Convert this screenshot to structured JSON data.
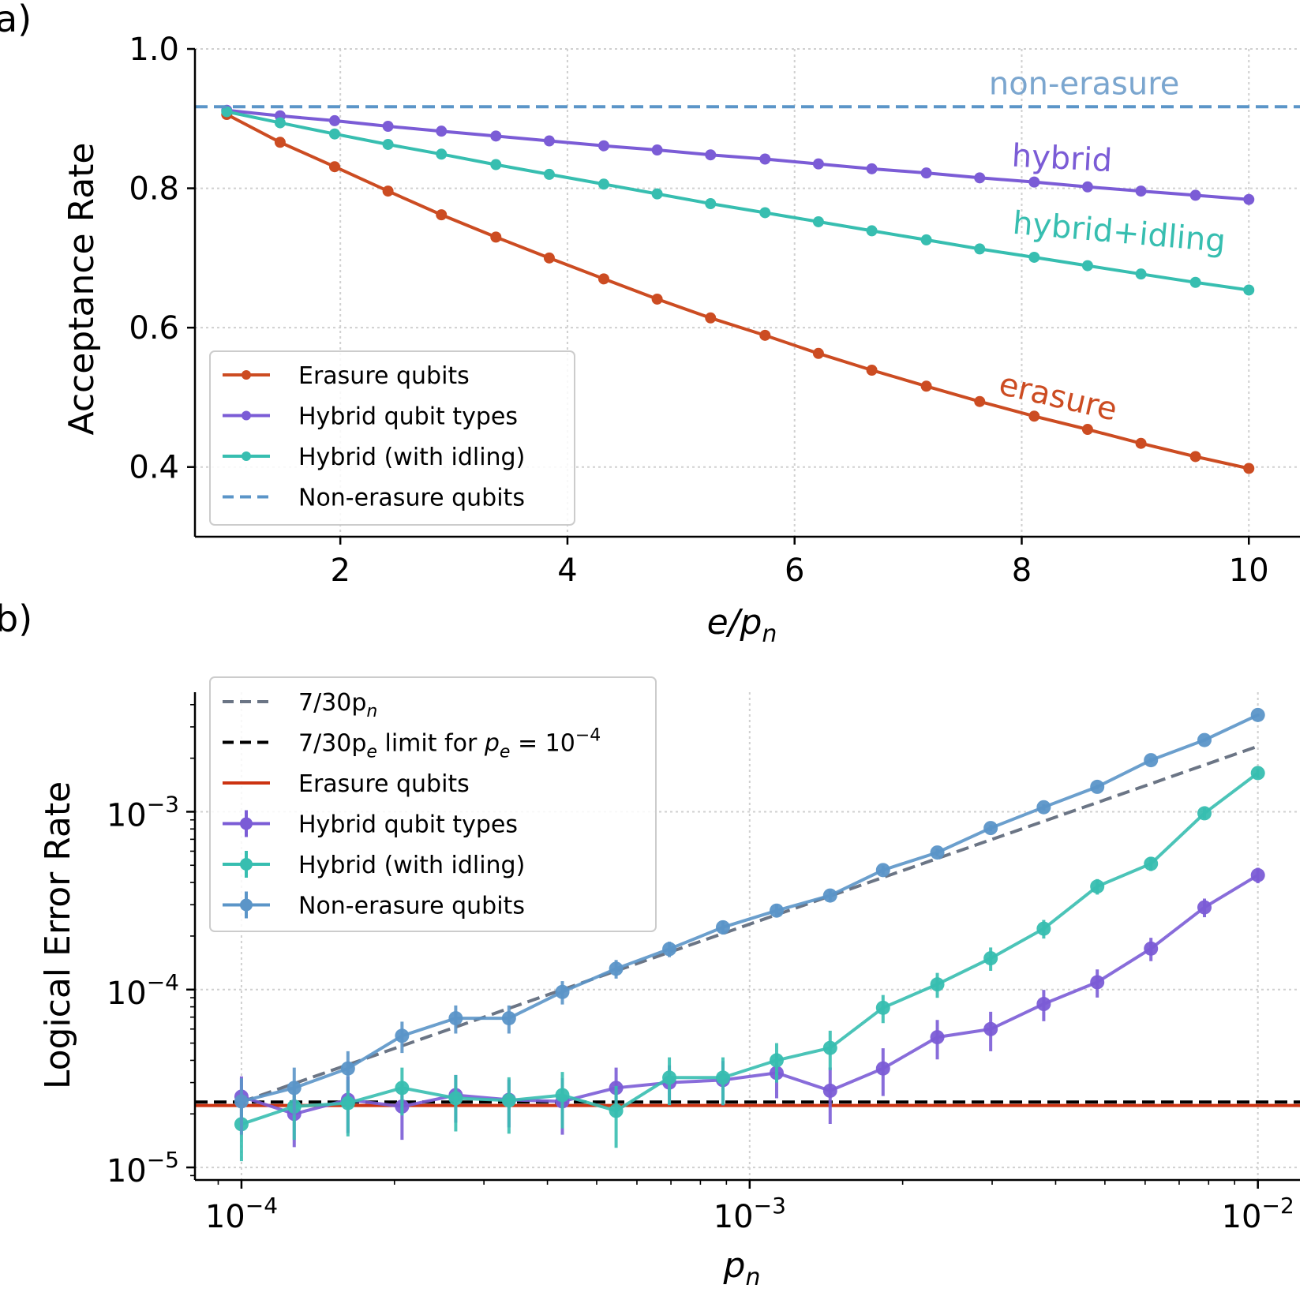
{
  "chart_data": [
    {
      "panel_label": "a)",
      "type": "line",
      "xlabel_main": "e/p",
      "xlabel_sub": "n",
      "ylabel": "Acceptance Rate",
      "xlim": [
        0.72,
        10.45
      ],
      "ylim": [
        0.3,
        1.0
      ],
      "xticks": [
        2,
        4,
        6,
        8,
        10
      ],
      "xtick_labels": [
        "2",
        "4",
        "6",
        "8",
        "10"
      ],
      "yticks": [
        0.4,
        0.6,
        0.8,
        1.0
      ],
      "ytick_labels": [
        "0.4",
        "0.6",
        "0.8",
        "1.0"
      ],
      "grid": true,
      "legend_position": "lower-left",
      "x": [
        1.0,
        1.47,
        1.95,
        2.42,
        2.89,
        3.37,
        3.84,
        4.32,
        4.79,
        5.26,
        5.74,
        6.21,
        6.68,
        7.16,
        7.63,
        8.11,
        8.58,
        9.05,
        9.53,
        10.0
      ],
      "series": [
        {
          "name": "Erasure qubits",
          "color": "#CC4C22",
          "style": "solid-marker",
          "values": [
            0.906,
            0.866,
            0.831,
            0.796,
            0.762,
            0.73,
            0.7,
            0.67,
            0.641,
            0.614,
            0.589,
            0.563,
            0.539,
            0.516,
            0.494,
            0.473,
            0.454,
            0.434,
            0.415,
            0.398
          ]
        },
        {
          "name": "Hybrid qubit types",
          "color": "#7B5CD6",
          "style": "solid-marker",
          "values": [
            0.912,
            0.904,
            0.897,
            0.889,
            0.882,
            0.875,
            0.868,
            0.861,
            0.855,
            0.848,
            0.842,
            0.835,
            0.828,
            0.822,
            0.815,
            0.809,
            0.802,
            0.796,
            0.79,
            0.784
          ]
        },
        {
          "name": "Hybrid (with idling)",
          "color": "#37BEB0",
          "style": "solid-marker",
          "values": [
            0.91,
            0.894,
            0.878,
            0.863,
            0.849,
            0.834,
            0.82,
            0.806,
            0.792,
            0.778,
            0.765,
            0.752,
            0.739,
            0.726,
            0.713,
            0.701,
            0.689,
            0.677,
            0.665,
            0.654
          ]
        },
        {
          "name": "Non-erasure qubits",
          "color": "#5B95C8",
          "style": "dashed-hline",
          "value": 0.917
        }
      ],
      "annotations": [
        {
          "text": "non-erasure",
          "color": "#7BA6CF",
          "x": 8.55,
          "y": 0.935,
          "rotation": 0
        },
        {
          "text": "hybrid",
          "color": "#7B5CD6",
          "x": 8.35,
          "y": 0.828,
          "rotation": 3
        },
        {
          "text": "hybrid+idling",
          "color": "#37BEB0",
          "x": 8.85,
          "y": 0.722,
          "rotation": 5
        },
        {
          "text": "erasure",
          "color": "#CC4C22",
          "x": 8.3,
          "y": 0.486,
          "rotation": 13
        }
      ]
    },
    {
      "panel_label": "b)",
      "type": "line",
      "scale": "log-log",
      "xlabel_main": "p",
      "xlabel_sub": "n",
      "ylabel": "Logical Error Rate",
      "xlim": [
        8.1e-05,
        0.0121
      ],
      "ylim": [
        8.5e-06,
        0.0047
      ],
      "xticks": [
        0.0001,
        0.001,
        0.01
      ],
      "xtick_labels": [
        {
          "base": "10",
          "exp": "−4"
        },
        {
          "base": "10",
          "exp": "−3"
        },
        {
          "base": "10",
          "exp": "−2"
        }
      ],
      "yticks": [
        1e-05,
        0.0001,
        0.001
      ],
      "ytick_labels": [
        {
          "base": "10",
          "exp": "−5"
        },
        {
          "base": "10",
          "exp": "−4"
        },
        {
          "base": "10",
          "exp": "−3"
        }
      ],
      "grid": true,
      "legend_position": "upper-left",
      "x": [
        0.0001,
        0.000127,
        0.000162,
        0.000207,
        0.000264,
        0.000336,
        0.000428,
        0.000546,
        0.000695,
        0.000886,
        0.00113,
        0.00144,
        0.00183,
        0.00234,
        0.00298,
        0.00379,
        0.00483,
        0.00616,
        0.00785,
        0.01
      ],
      "legend": [
        {
          "name": "7/30p",
          "sub": "n",
          "tail": "",
          "color": "#6B7585",
          "style": "dashed"
        },
        {
          "name": "7/30p",
          "sub": "e",
          "tail": " limit for ",
          "tail_var": "p",
          "tail_sub": "e",
          "tail_end": " = 10",
          "tail_sup": "−4",
          "color": "#000000",
          "style": "dashed"
        },
        {
          "name": "Erasure qubits",
          "color": "#CC3311",
          "style": "solid"
        },
        {
          "name": "Hybrid qubit types",
          "color": "#7B5CD6",
          "style": "errorbar"
        },
        {
          "name": "Hybrid (with idling)",
          "color": "#37BEB0",
          "style": "errorbar"
        },
        {
          "name": "Non-erasure qubits",
          "color": "#5B95C8",
          "style": "errorbar"
        }
      ],
      "reference_lines": [
        {
          "name": "7/30p_n",
          "color": "#6B7585",
          "style": "dashed",
          "coefficient": 0.2333
        },
        {
          "name": "7/30p_e limit for p_e = 10^-4",
          "color": "#000000",
          "style": "dashed",
          "value": 2.333e-05
        },
        {
          "name": "Erasure qubits",
          "color": "#CC3311",
          "style": "solid",
          "value": 2.23e-05
        }
      ],
      "series": [
        {
          "name": "Hybrid qubit types",
          "color": "#7B5CD6",
          "values": [
            2.5e-05,
            2e-05,
            2.4e-05,
            2.2e-05,
            2.55e-05,
            2.4e-05,
            2.35e-05,
            2.8e-05,
            3e-05,
            3.1e-05,
            3.4e-05,
            2.7e-05,
            3.6e-05,
            5.4e-05,
            6e-05,
            8.3e-05,
            0.00011,
            0.00017,
            0.00029,
            0.00044
          ],
          "err": [
            0.3,
            0.35,
            0.35,
            0.35,
            0.3,
            0.3,
            0.35,
            0.3,
            0.25,
            0.28,
            0.28,
            0.35,
            0.3,
            0.25,
            0.25,
            0.2,
            0.18,
            0.15,
            0.12,
            0.1
          ]
        },
        {
          "name": "Hybrid (with idling)",
          "color": "#37BEB0",
          "values": [
            1.75e-05,
            2.2e-05,
            2.3e-05,
            2.8e-05,
            2.45e-05,
            2.38e-05,
            2.55e-05,
            2.08e-05,
            3.2e-05,
            3.2e-05,
            4e-05,
            4.7e-05,
            7.9e-05,
            0.000107,
            0.00015,
            0.00022,
            0.00038,
            0.00051,
            0.00098,
            0.00165
          ],
          "err": [
            0.38,
            0.35,
            0.35,
            0.3,
            0.35,
            0.35,
            0.35,
            0.38,
            0.3,
            0.3,
            0.25,
            0.25,
            0.18,
            0.16,
            0.15,
            0.12,
            0.1,
            0.09,
            0.07,
            0.06
          ]
        },
        {
          "name": "Non-erasure qubits",
          "color": "#5B95C8",
          "values": [
            2.35e-05,
            2.8e-05,
            3.6e-05,
            5.5e-05,
            6.9e-05,
            6.9e-05,
            9.7e-05,
            0.000131,
            0.000169,
            0.000224,
            0.000278,
            0.000338,
            0.00047,
            0.00059,
            0.00081,
            0.00106,
            0.00138,
            0.00195,
            0.00253,
            0.0035
          ],
          "err": [
            0.35,
            0.3,
            0.25,
            0.2,
            0.18,
            0.18,
            0.15,
            0.12,
            0.1,
            0.09,
            0.08,
            0.07,
            0.06,
            0.05,
            0.04,
            0.04,
            0.03,
            0.03,
            0.02,
            0.02
          ]
        }
      ]
    }
  ]
}
